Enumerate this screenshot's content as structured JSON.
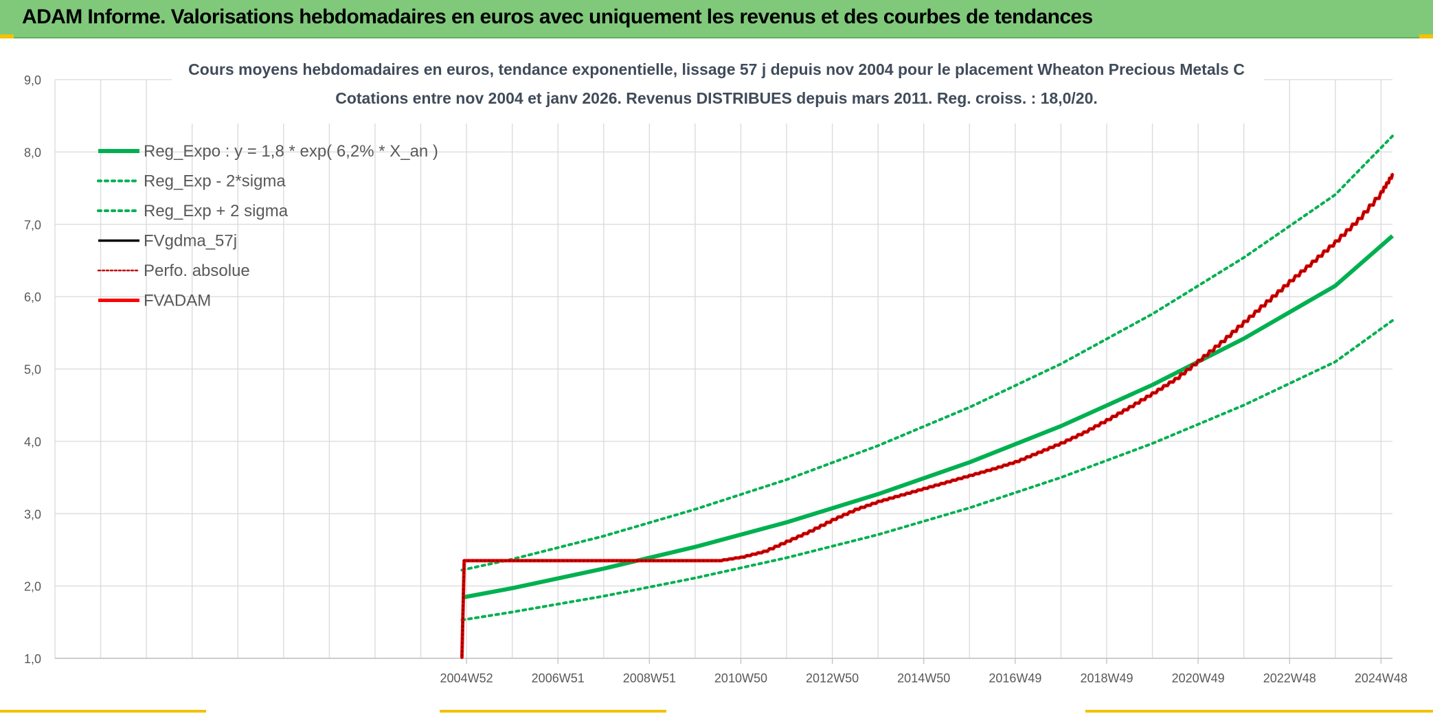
{
  "header": {
    "title": "ADAM Informe. Valorisations hebdomadaires en euros avec uniquement les revenus et des courbes de tendances"
  },
  "chart_data": {
    "type": "line",
    "title": "Cours moyens hebdomadaires en euros, tendance exponentielle, lissage 57 j depuis nov 2004 pour le placement Wheaton Precious Metals C",
    "subtitle": "Cotations entre nov 2004 et janv 2026. Revenus DISTRIBUES depuis mars 2011. Reg. croiss. : 18,0/20.",
    "xlabel": "",
    "ylabel": "",
    "ylim": [
      1.0,
      9.0
    ],
    "yticks": [
      "1,0",
      "2,0",
      "3,0",
      "4,0",
      "5,0",
      "6,0",
      "7,0",
      "8,0",
      "9,0"
    ],
    "xticks": [
      "2004W52",
      "2006W51",
      "2008W51",
      "2010W50",
      "2012W50",
      "2014W50",
      "2016W49",
      "2018W49",
      "2020W49",
      "2022W48",
      "2024W48"
    ],
    "xlim_years": [
      1996.0,
      2025.25
    ],
    "grid": true,
    "legend_position": "top-left",
    "series": [
      {
        "name": "Reg_Expo : y = 1,8 * exp( 6,2% *  X_an )",
        "color": "#00b050",
        "style": "solid-thick",
        "x": [
          2004.9,
          2006,
          2008,
          2010,
          2012,
          2014,
          2016,
          2018,
          2020,
          2022,
          2024,
          2025.25
        ],
        "values": [
          1.84,
          1.97,
          2.24,
          2.54,
          2.88,
          3.27,
          3.71,
          4.21,
          4.78,
          5.42,
          6.15,
          6.84
        ]
      },
      {
        "name": "Reg_Exp - 2*sigma",
        "color": "#00b050",
        "style": "dotted",
        "x": [
          2004.9,
          2006,
          2008,
          2010,
          2012,
          2014,
          2016,
          2018,
          2020,
          2022,
          2024,
          2025.25
        ],
        "values": [
          1.53,
          1.64,
          1.86,
          2.11,
          2.39,
          2.71,
          3.08,
          3.5,
          3.97,
          4.5,
          5.1,
          5.67
        ]
      },
      {
        "name": "Reg_Exp + 2 sigma",
        "color": "#00b050",
        "style": "dotted",
        "x": [
          2004.9,
          2006,
          2008,
          2010,
          2012,
          2014,
          2016,
          2018,
          2020,
          2022,
          2024,
          2025.25
        ],
        "values": [
          2.22,
          2.37,
          2.69,
          3.06,
          3.47,
          3.94,
          4.47,
          5.07,
          5.76,
          6.54,
          7.41,
          8.22
        ]
      },
      {
        "name": "FVgdma_57j",
        "color": "#000000",
        "style": "solid",
        "x": [
          2004.9,
          2004.95,
          2010.5,
          2011.0,
          2011.5,
          2012.0,
          2012.5,
          2013.0,
          2013.5,
          2014.0,
          2014.5,
          2015.0,
          2015.5,
          2016.0,
          2016.5,
          2017.0,
          2017.5,
          2018.0,
          2018.5,
          2019.0,
          2019.5,
          2020.0,
          2020.5,
          2021.0,
          2021.5,
          2022.0,
          2022.5,
          2023.0,
          2023.5,
          2024.0,
          2024.5,
          2025.0,
          2025.25
        ],
        "values": [
          1.0,
          2.35,
          2.35,
          2.4,
          2.48,
          2.62,
          2.76,
          2.92,
          3.06,
          3.17,
          3.26,
          3.35,
          3.44,
          3.53,
          3.62,
          3.72,
          3.85,
          3.98,
          4.13,
          4.3,
          4.48,
          4.67,
          4.87,
          5.12,
          5.38,
          5.66,
          5.94,
          6.22,
          6.49,
          6.77,
          7.08,
          7.45,
          7.7
        ]
      },
      {
        "name": "Perfo. absolue",
        "color": "#c00000",
        "style": "dotted",
        "x": [
          2004.9,
          2004.95,
          2010.5,
          2011.0,
          2011.5,
          2012.0,
          2012.5,
          2013.0,
          2013.5,
          2014.0,
          2014.5,
          2015.0,
          2015.5,
          2016.0,
          2016.5,
          2017.0,
          2017.5,
          2018.0,
          2018.5,
          2019.0,
          2019.5,
          2020.0,
          2020.5,
          2021.0,
          2021.5,
          2022.0,
          2022.5,
          2023.0,
          2023.5,
          2024.0,
          2024.5,
          2025.0,
          2025.25
        ],
        "values": [
          1.0,
          2.35,
          2.35,
          2.4,
          2.48,
          2.62,
          2.76,
          2.92,
          3.06,
          3.17,
          3.26,
          3.35,
          3.44,
          3.53,
          3.62,
          3.72,
          3.85,
          3.98,
          4.13,
          4.3,
          4.48,
          4.67,
          4.87,
          5.12,
          5.38,
          5.66,
          5.94,
          6.22,
          6.49,
          6.77,
          7.08,
          7.45,
          7.7
        ]
      },
      {
        "name": "FVADAM",
        "color": "#ff0000",
        "style": "solid-thick",
        "x": [
          2004.9,
          2004.95,
          2010.5,
          2011.0,
          2011.5,
          2012.0,
          2012.5,
          2013.0,
          2013.5,
          2014.0,
          2014.5,
          2015.0,
          2015.5,
          2016.0,
          2016.5,
          2017.0,
          2017.5,
          2018.0,
          2018.5,
          2019.0,
          2019.5,
          2020.0,
          2020.5,
          2021.0,
          2021.5,
          2022.0,
          2022.5,
          2023.0,
          2023.5,
          2024.0,
          2024.5,
          2025.0,
          2025.25
        ],
        "values": [
          1.0,
          2.35,
          2.35,
          2.4,
          2.48,
          2.62,
          2.76,
          2.92,
          3.06,
          3.17,
          3.26,
          3.35,
          3.44,
          3.53,
          3.62,
          3.72,
          3.85,
          3.98,
          4.13,
          4.3,
          4.48,
          4.67,
          4.87,
          5.12,
          5.38,
          5.66,
          5.94,
          6.22,
          6.49,
          6.77,
          7.08,
          7.45,
          7.7
        ]
      }
    ]
  }
}
